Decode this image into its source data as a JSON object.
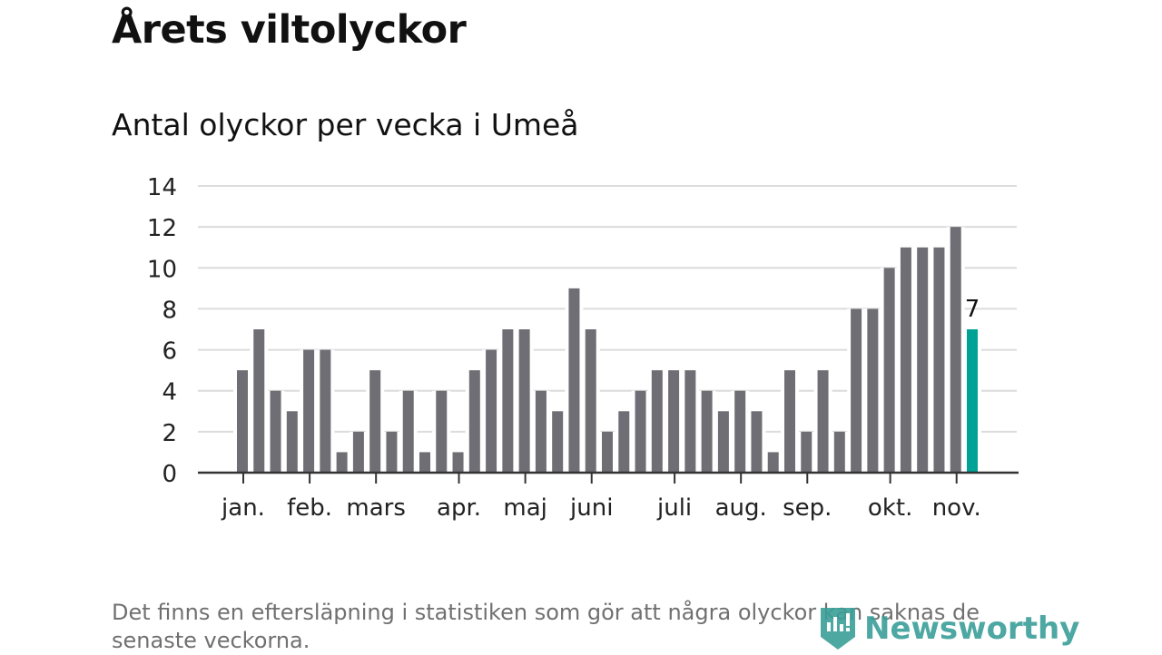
{
  "header": {
    "title": "Årets viltolyckor",
    "subtitle": "Antal olyckor per vecka i Umeå"
  },
  "chart_data": {
    "type": "bar",
    "title": "Antal olyckor per vecka i Umeå",
    "xlabel": "",
    "ylabel": "",
    "ylim": [
      0,
      14
    ],
    "yticks": [
      0,
      2,
      4,
      6,
      8,
      10,
      12,
      14
    ],
    "grid": true,
    "values": [
      5,
      7,
      4,
      3,
      6,
      6,
      1,
      2,
      5,
      2,
      4,
      1,
      4,
      1,
      5,
      6,
      7,
      7,
      4,
      3,
      9,
      7,
      2,
      3,
      4,
      5,
      5,
      5,
      4,
      3,
      4,
      3,
      1,
      5,
      2,
      5,
      2,
      8,
      8,
      10,
      11,
      11,
      11,
      12,
      7
    ],
    "month_ticks": [
      {
        "label": "jan.",
        "week_index": 0
      },
      {
        "label": "feb.",
        "week_index": 4
      },
      {
        "label": "mars",
        "week_index": 8
      },
      {
        "label": "apr.",
        "week_index": 13
      },
      {
        "label": "maj",
        "week_index": 17
      },
      {
        "label": "juni",
        "week_index": 21
      },
      {
        "label": "juli",
        "week_index": 26
      },
      {
        "label": "aug.",
        "week_index": 30
      },
      {
        "label": "sep.",
        "week_index": 34
      },
      {
        "label": "okt.",
        "week_index": 39
      },
      {
        "label": "nov.",
        "week_index": 43
      }
    ],
    "highlight_label": "7",
    "colors": {
      "bar": "#6f6e74",
      "highlight": "#00a296",
      "grid": "#dcdcdc",
      "axis": "#333333"
    }
  },
  "footer": {
    "note": "Det finns en eftersläpning i statistiken som gör att några olyckor kan saknas de senaste veckorna.",
    "logo": "Newsworthy"
  }
}
